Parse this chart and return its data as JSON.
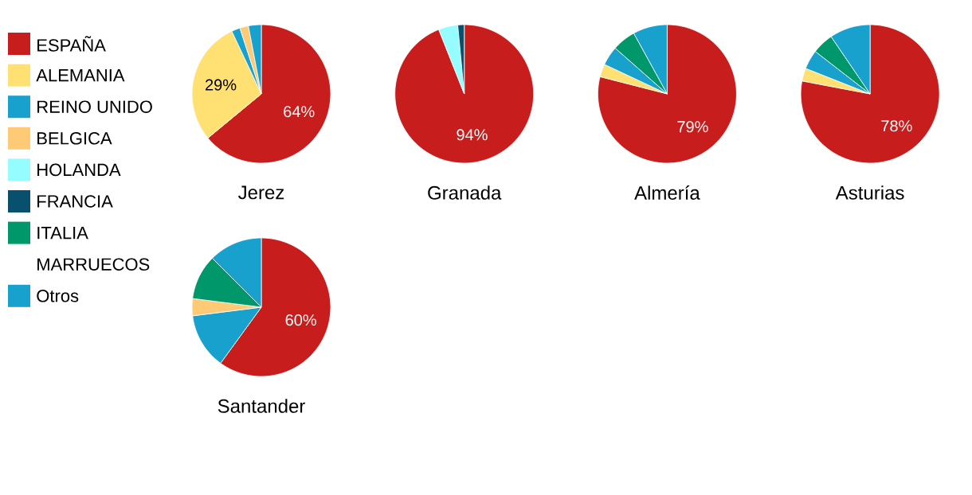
{
  "chart_data": {
    "type": "pie",
    "legend": "left",
    "categories": [
      "ESPAÑA",
      "ALEMANIA",
      "REINO UNIDO",
      "BELGICA",
      "HOLANDA",
      "FRANCIA",
      "ITALIA",
      "MARRUECOS",
      "Otros"
    ],
    "colors": [
      "#c71e1d",
      "#ffe073",
      "#18a1cd",
      "#ffca76",
      "#95fcff",
      "#09506f",
      "#00986a",
      "#ffffff",
      "#18a1cd"
    ],
    "series": [
      {
        "name": "Jerez",
        "values": [
          64,
          29,
          2,
          2,
          0,
          0,
          0,
          0,
          3
        ],
        "value_labels": [
          "64%",
          "29%",
          null,
          null,
          null,
          null,
          null,
          null,
          null
        ]
      },
      {
        "name": "Granada",
        "values": [
          94,
          0,
          0,
          0,
          4.5,
          1.5,
          0,
          0,
          0
        ],
        "value_labels": [
          "94%",
          null,
          null,
          null,
          null,
          null,
          null,
          null,
          null
        ]
      },
      {
        "name": "Almería",
        "values": [
          79,
          3,
          4.5,
          0,
          0,
          0,
          5.5,
          0,
          8
        ],
        "value_labels": [
          "79%",
          null,
          null,
          null,
          null,
          null,
          null,
          null,
          null
        ]
      },
      {
        "name": "Asturias",
        "values": [
          78,
          3,
          4.5,
          0,
          0,
          0,
          5,
          0,
          9.5
        ],
        "value_labels": [
          "78%",
          null,
          null,
          null,
          null,
          null,
          null,
          null,
          null
        ]
      },
      {
        "name": "Santander",
        "values": [
          60,
          0,
          13,
          4,
          0,
          0,
          10.5,
          0,
          12.5
        ],
        "value_labels": [
          "60%",
          null,
          null,
          null,
          null,
          null,
          null,
          null,
          null
        ]
      }
    ]
  }
}
